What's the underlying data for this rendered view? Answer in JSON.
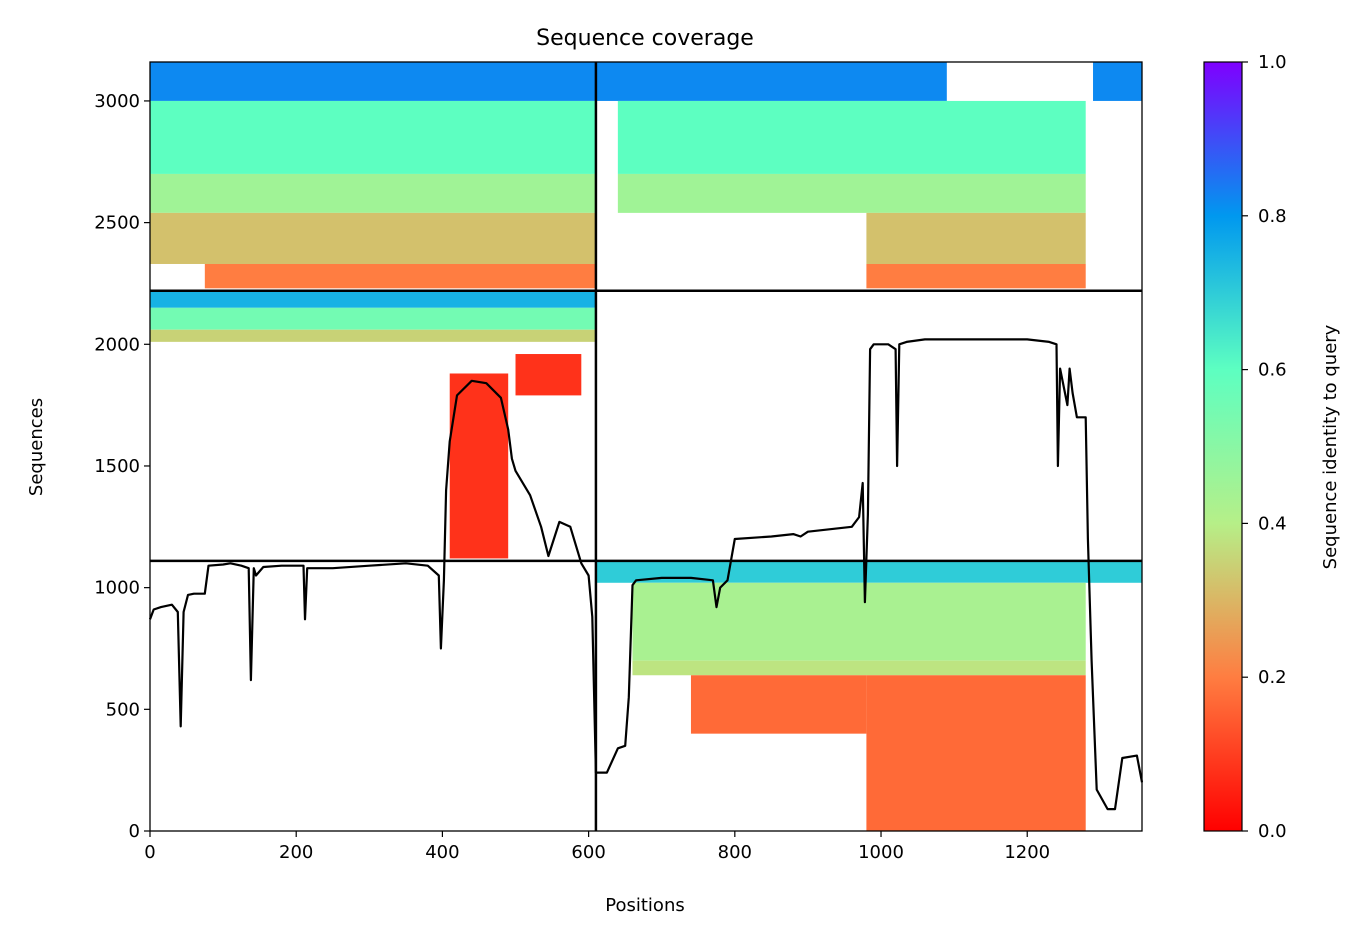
{
  "chart_data": {
    "type": "heatmap",
    "title": "Sequence coverage",
    "xlabel": "Positions",
    "ylabel": "Sequences",
    "xlim": [
      0,
      1357
    ],
    "ylim": [
      0,
      3160
    ],
    "xticks": [
      0,
      200,
      400,
      600,
      800,
      1000,
      1200
    ],
    "yticks": [
      0,
      500,
      1000,
      1500,
      2000,
      2500,
      3000
    ],
    "grid": false,
    "colorbar": {
      "label": "Sequence identity to query",
      "colormap": "rainbow_r",
      "range": [
        0,
        1
      ],
      "ticks": [
        0.0,
        0.2,
        0.4,
        0.6,
        0.8,
        1.0
      ],
      "tick_labels": [
        "0.0",
        "0.2",
        "0.4",
        "0.6",
        "0.8",
        "1.0"
      ]
    },
    "dividers": {
      "vertical_x": 610,
      "horizontal_y": [
        1110,
        2220
      ]
    },
    "coverage_blocks": [
      {
        "x": [
          0,
          610
        ],
        "y": [
          3000,
          3160
        ],
        "identity": 0.82
      },
      {
        "x": [
          0,
          610
        ],
        "y": [
          2700,
          3000
        ],
        "identity": 0.6
      },
      {
        "x": [
          0,
          610
        ],
        "y": [
          2540,
          2700
        ],
        "identity": 0.45
      },
      {
        "x": [
          0,
          610
        ],
        "y": [
          2330,
          2540
        ],
        "identity": 0.32
      },
      {
        "x": [
          75,
          610
        ],
        "y": [
          2230,
          2330
        ],
        "identity": 0.2
      },
      {
        "x": [
          610,
          1090
        ],
        "y": [
          3000,
          3160
        ],
        "identity": 0.82
      },
      {
        "x": [
          640,
          1280
        ],
        "y": [
          2700,
          3000
        ],
        "identity": 0.6
      },
      {
        "x": [
          640,
          1280
        ],
        "y": [
          2540,
          2700
        ],
        "identity": 0.45
      },
      {
        "x": [
          980,
          1280
        ],
        "y": [
          2330,
          2540
        ],
        "identity": 0.32
      },
      {
        "x": [
          980,
          1280
        ],
        "y": [
          2230,
          2330
        ],
        "identity": 0.2
      },
      {
        "x": [
          1290,
          1357
        ],
        "y": [
          3000,
          3160
        ],
        "identity": 0.82
      },
      {
        "x": [
          0,
          610
        ],
        "y": [
          2150,
          2220
        ],
        "identity": 0.75
      },
      {
        "x": [
          0,
          610
        ],
        "y": [
          2060,
          2150
        ],
        "identity": 0.55
      },
      {
        "x": [
          0,
          610
        ],
        "y": [
          2010,
          2060
        ],
        "identity": 0.35
      },
      {
        "x": [
          410,
          490
        ],
        "y": [
          1120,
          1880
        ],
        "identity": 0.08
      },
      {
        "x": [
          500,
          590
        ],
        "y": [
          1790,
          1960
        ],
        "identity": 0.08
      },
      {
        "x": [
          610,
          1357
        ],
        "y": [
          1020,
          1110
        ],
        "identity": 0.7
      },
      {
        "x": [
          660,
          1280
        ],
        "y": [
          700,
          1020
        ],
        "identity": 0.43
      },
      {
        "x": [
          660,
          1280
        ],
        "y": [
          640,
          700
        ],
        "identity": 0.38
      },
      {
        "x": [
          980,
          1280
        ],
        "y": [
          0,
          640
        ],
        "identity": 0.17
      },
      {
        "x": [
          740,
          980
        ],
        "y": [
          400,
          640
        ],
        "identity": 0.17
      }
    ],
    "series": [
      {
        "x": [
          0,
          5,
          15,
          30,
          38,
          42,
          46,
          52,
          60,
          75,
          80,
          100,
          110,
          125,
          135,
          138,
          142,
          145,
          155,
          180,
          210,
          212,
          215,
          250,
          300,
          350,
          380,
          395,
          398,
          402,
          405,
          410,
          420,
          440,
          460,
          480,
          490,
          495,
          500,
          520,
          535,
          545,
          560,
          575,
          590,
          600,
          605,
          610,
          625,
          640,
          650,
          655,
          660,
          665,
          700,
          740,
          770,
          775,
          780,
          790,
          800,
          850,
          880,
          890,
          900,
          960,
          970,
          975,
          978,
          982,
          985,
          990,
          1010,
          1020,
          1022,
          1025,
          1035,
          1060,
          1100,
          1150,
          1200,
          1230,
          1240,
          1242,
          1245,
          1255,
          1258,
          1262,
          1268,
          1275,
          1280,
          1283,
          1288,
          1295,
          1310,
          1320,
          1330,
          1350,
          1357
        ],
        "y": [
          870,
          910,
          920,
          930,
          900,
          430,
          900,
          970,
          975,
          975,
          1090,
          1095,
          1100,
          1090,
          1080,
          620,
          1080,
          1050,
          1085,
          1090,
          1090,
          870,
          1080,
          1080,
          1090,
          1100,
          1090,
          1050,
          750,
          1030,
          1400,
          1600,
          1790,
          1850,
          1840,
          1780,
          1650,
          1530,
          1480,
          1380,
          1250,
          1130,
          1270,
          1250,
          1100,
          1050,
          880,
          240,
          240,
          340,
          350,
          550,
          1010,
          1030,
          1040,
          1040,
          1030,
          920,
          1000,
          1030,
          1200,
          1210,
          1220,
          1210,
          1230,
          1250,
          1290,
          1430,
          940,
          1300,
          1980,
          2000,
          2000,
          1980,
          1500,
          2000,
          2010,
          2020,
          2020,
          2020,
          2020,
          2010,
          2000,
          1500,
          1900,
          1750,
          1900,
          1800,
          1700,
          1700,
          1700,
          1200,
          700,
          170,
          90,
          90,
          300,
          310,
          200
        ]
      }
    ]
  }
}
